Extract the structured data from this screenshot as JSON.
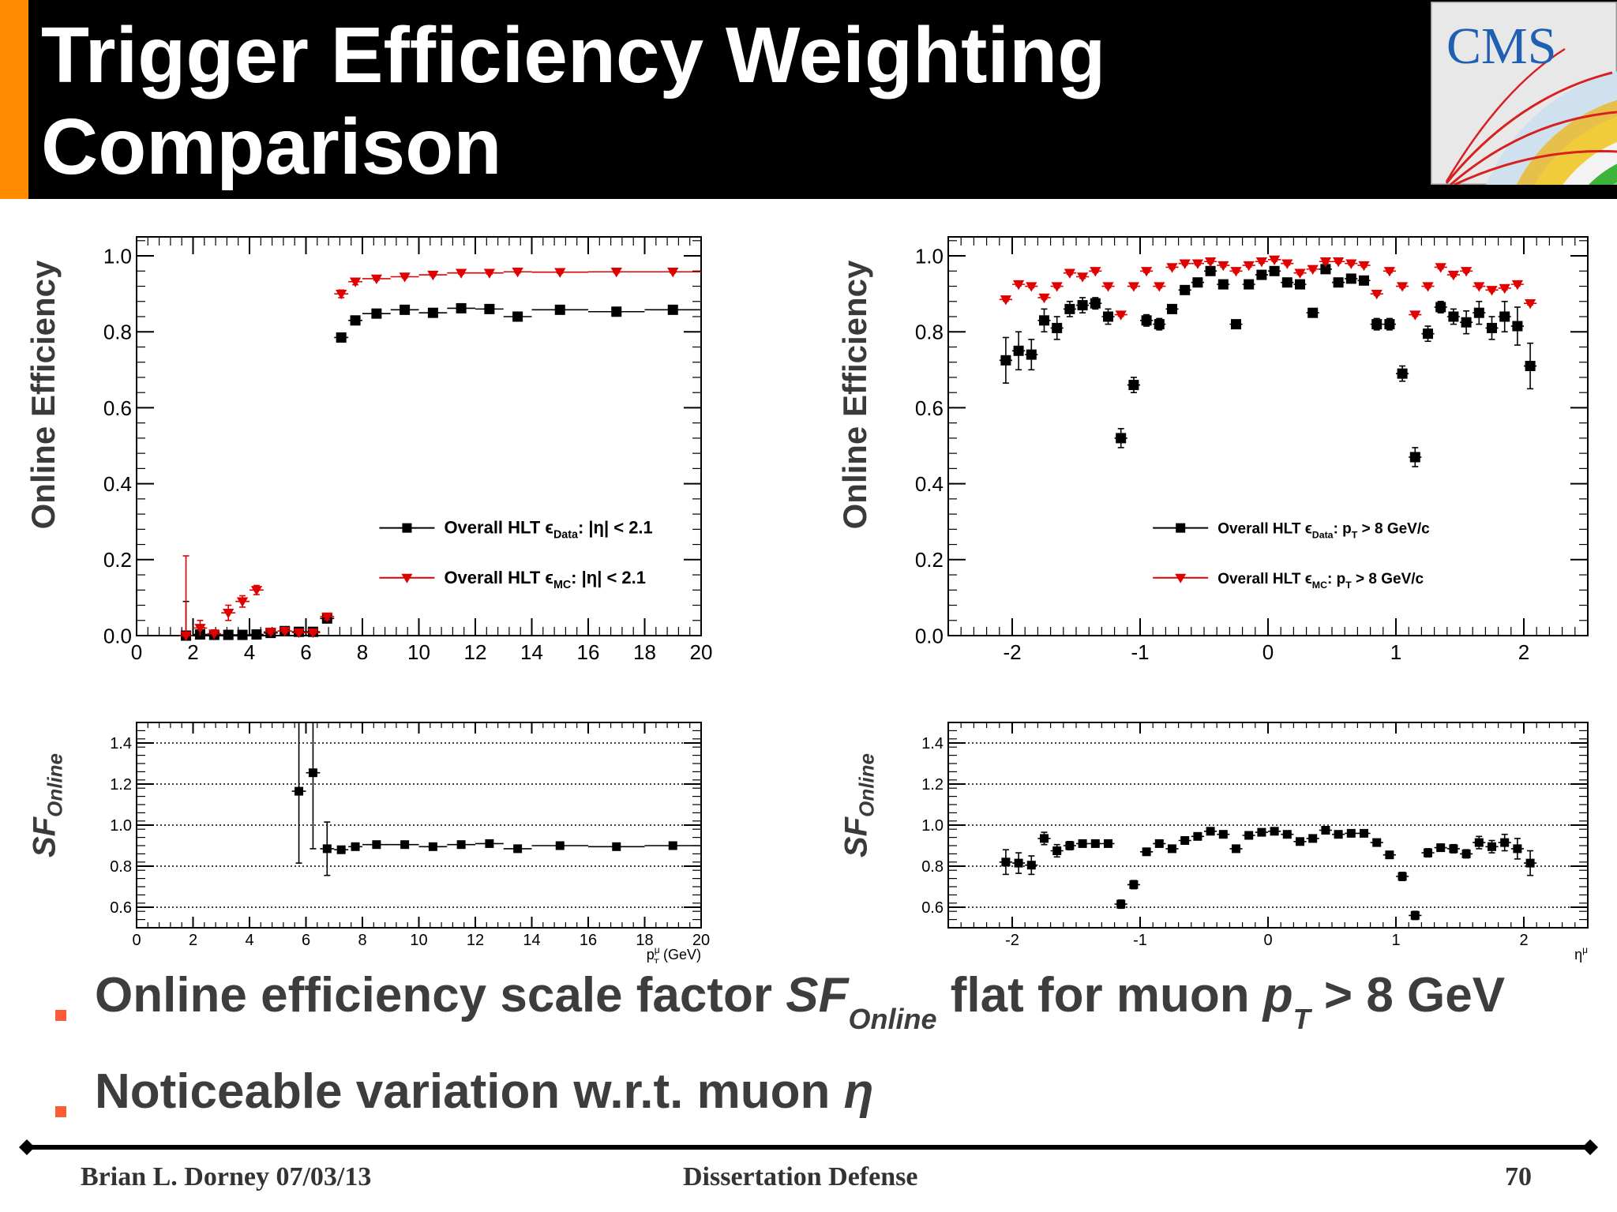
{
  "slide": {
    "title_line1": "Trigger Efficiency Weighting",
    "title_line2": "Comparison",
    "logo_text": "CMS",
    "accent_color": "#ff8c00",
    "bullet_color": "#ff5a36"
  },
  "bullets": [
    {
      "text_a": "Online efficiency scale factor ",
      "italic_a": "SF",
      "sub_a": "Online",
      "text_b": " flat for muon ",
      "italic_b": "p",
      "sub_b": "T",
      "text_c": " > 8 GeV"
    },
    {
      "text_a": "Noticeable variation w.r.t. muon ",
      "italic_a": "η"
    }
  ],
  "footer": {
    "left": "Brian L. Dorney 07/03/13",
    "center": "Dissertation Defense",
    "right": "70"
  },
  "chart_data": [
    {
      "id": "eff-pt",
      "type": "scatter",
      "ylabel": "Online Efficiency",
      "xlim": [
        0,
        20
      ],
      "ylim": [
        0,
        1.05
      ],
      "xticks": [
        "0",
        "2",
        "4",
        "6",
        "8",
        "10",
        "12",
        "14",
        "16",
        "18",
        "20"
      ],
      "yticks": [
        "0.0",
        "0.2",
        "0.4",
        "0.6",
        "0.8",
        "1.0"
      ],
      "legend": {
        "position": "center-right",
        "entries": [
          {
            "label": "Overall HLT ϵ",
            "sub": "Data",
            "suffix": ": |η| < 2.1",
            "marker": "square",
            "color": "#000000"
          },
          {
            "label": "Overall HLT ϵ",
            "sub": "MC",
            "suffix": ": |η| < 2.1",
            "marker": "triangle-down",
            "color": "#e00000"
          }
        ]
      },
      "series": [
        {
          "name": "Overall HLT ϵData: |η| < 2.1",
          "color": "#000000",
          "marker": "square",
          "x": [
            1.75,
            2.25,
            2.75,
            3.25,
            3.75,
            4.25,
            4.75,
            5.25,
            5.75,
            6.25,
            6.75,
            7.25,
            7.75,
            8.5,
            9.5,
            10.5,
            11.5,
            12.5,
            13.5,
            15,
            17,
            19
          ],
          "xerr": [
            0.25,
            0.25,
            0.25,
            0.25,
            0.25,
            0.25,
            0.25,
            0.25,
            0.25,
            0.25,
            0.25,
            0.25,
            0.25,
            0.5,
            0.5,
            0.5,
            0.5,
            0.5,
            0.5,
            1,
            1,
            1
          ],
          "y": [
            0.0,
            0.003,
            0.002,
            0.002,
            0.002,
            0.003,
            0.007,
            0.012,
            0.01,
            0.01,
            0.045,
            0.785,
            0.83,
            0.848,
            0.858,
            0.85,
            0.862,
            0.86,
            0.84,
            0.858,
            0.853,
            0.858
          ],
          "yerr": [
            0.09,
            0.01,
            0.005,
            0.005,
            0.005,
            0.005,
            0.005,
            0.006,
            0.006,
            0.006,
            0.01,
            0.01,
            0.01,
            0.006,
            0.005,
            0.005,
            0.005,
            0.005,
            0.005,
            0.004,
            0.004,
            0.004
          ]
        },
        {
          "name": "Overall HLT ϵMC: |η| < 2.1",
          "color": "#e00000",
          "marker": "triangle-down",
          "x": [
            1.75,
            2.25,
            2.75,
            3.25,
            3.75,
            4.25,
            4.75,
            5.25,
            5.75,
            6.25,
            6.75,
            7.25,
            7.75,
            8.5,
            9.5,
            10.5,
            11.5,
            12.5,
            13.5,
            15,
            17,
            19
          ],
          "xerr": [
            0.25,
            0.25,
            0.25,
            0.25,
            0.25,
            0.25,
            0.25,
            0.25,
            0.25,
            0.25,
            0.25,
            0.25,
            0.25,
            0.5,
            0.5,
            0.5,
            0.5,
            0.5,
            0.5,
            1,
            1,
            1
          ],
          "y": [
            0.0,
            0.02,
            0.005,
            0.06,
            0.09,
            0.12,
            0.01,
            0.012,
            0.008,
            0.008,
            0.05,
            0.9,
            0.932,
            0.94,
            0.945,
            0.95,
            0.955,
            0.955,
            0.958,
            0.957,
            0.958,
            0.958
          ],
          "yerr": [
            0.21,
            0.02,
            0.01,
            0.02,
            0.015,
            0.012,
            0.005,
            0.005,
            0.004,
            0.004,
            0.008,
            0.01,
            0.008,
            0.004,
            0.003,
            0.003,
            0.003,
            0.003,
            0.003,
            0.003,
            0.003,
            0.003
          ]
        }
      ]
    },
    {
      "id": "eff-eta",
      "type": "scatter",
      "ylabel": "Online Efficiency",
      "xlim": [
        -2.5,
        2.5
      ],
      "ylim": [
        0,
        1.05
      ],
      "xticks": [
        "-2",
        "-1",
        "0",
        "1",
        "2"
      ],
      "yticks": [
        "0.0",
        "0.2",
        "0.4",
        "0.6",
        "0.8",
        "1.0"
      ],
      "legend": {
        "position": "center-right",
        "entries": [
          {
            "label": "Overall HLT ϵ",
            "sub": "Data",
            "suffix": ": p",
            "sub2": "T",
            "suffix2": " > 8 GeV/c",
            "marker": "square",
            "color": "#000000"
          },
          {
            "label": "Overall HLT ϵ",
            "sub": "MC",
            "suffix": ": p",
            "sub2": "T",
            "suffix2": " > 8 GeV/c",
            "marker": "triangle-down",
            "color": "#e00000"
          }
        ]
      },
      "series": [
        {
          "name": "Overall HLT ϵData: pT > 8 GeV/c",
          "color": "#000000",
          "marker": "square",
          "x": [
            -2.05,
            -1.95,
            -1.85,
            -1.75,
            -1.65,
            -1.55,
            -1.45,
            -1.35,
            -1.25,
            -1.15,
            -1.05,
            -0.95,
            -0.85,
            -0.75,
            -0.65,
            -0.55,
            -0.45,
            -0.35,
            -0.25,
            -0.15,
            -0.05,
            0.05,
            0.15,
            0.25,
            0.35,
            0.45,
            0.55,
            0.65,
            0.75,
            0.85,
            0.95,
            1.05,
            1.15,
            1.25,
            1.35,
            1.45,
            1.55,
            1.65,
            1.75,
            1.85,
            1.95,
            2.05
          ],
          "y": [
            0.725,
            0.75,
            0.74,
            0.83,
            0.81,
            0.86,
            0.87,
            0.875,
            0.84,
            0.52,
            0.66,
            0.83,
            0.82,
            0.86,
            0.91,
            0.93,
            0.96,
            0.925,
            0.82,
            0.925,
            0.95,
            0.96,
            0.93,
            0.925,
            0.85,
            0.965,
            0.93,
            0.94,
            0.935,
            0.82,
            0.82,
            0.69,
            0.47,
            0.795,
            0.865,
            0.84,
            0.825,
            0.85,
            0.81,
            0.84,
            0.815,
            0.71
          ],
          "yerr": [
            0.06,
            0.05,
            0.04,
            0.03,
            0.03,
            0.02,
            0.02,
            0.015,
            0.02,
            0.025,
            0.02,
            0.015,
            0.015,
            0.01,
            0.01,
            0.01,
            0.008,
            0.008,
            0.01,
            0.008,
            0.008,
            0.008,
            0.008,
            0.008,
            0.01,
            0.008,
            0.01,
            0.01,
            0.01,
            0.015,
            0.015,
            0.02,
            0.025,
            0.02,
            0.015,
            0.02,
            0.03,
            0.03,
            0.03,
            0.04,
            0.05,
            0.06
          ],
          "xerr": 0.05
        },
        {
          "name": "Overall HLT ϵMC: pT > 8 GeV/c",
          "color": "#e00000",
          "marker": "triangle-down",
          "x": [
            -2.05,
            -1.95,
            -1.85,
            -1.75,
            -1.65,
            -1.55,
            -1.45,
            -1.35,
            -1.25,
            -1.15,
            -1.05,
            -0.95,
            -0.85,
            -0.75,
            -0.65,
            -0.55,
            -0.45,
            -0.35,
            -0.25,
            -0.15,
            -0.05,
            0.05,
            0.15,
            0.25,
            0.35,
            0.45,
            0.55,
            0.65,
            0.75,
            0.85,
            0.95,
            1.05,
            1.15,
            1.25,
            1.35,
            1.45,
            1.55,
            1.65,
            1.75,
            1.85,
            1.95,
            2.05
          ],
          "y": [
            0.885,
            0.925,
            0.92,
            0.89,
            0.92,
            0.955,
            0.945,
            0.96,
            0.92,
            0.845,
            0.92,
            0.96,
            0.92,
            0.97,
            0.98,
            0.98,
            0.985,
            0.975,
            0.96,
            0.975,
            0.985,
            0.99,
            0.98,
            0.955,
            0.965,
            0.985,
            0.985,
            0.98,
            0.975,
            0.9,
            0.96,
            0.92,
            0.845,
            0.92,
            0.97,
            0.95,
            0.96,
            0.92,
            0.91,
            0.915,
            0.925,
            0.875
          ],
          "yerr": 0.004,
          "xerr": 0.05
        }
      ]
    },
    {
      "id": "sf-pt",
      "type": "scatter",
      "ylabel": "SF",
      "ylabel_sub": "Online",
      "xlabel": "p",
      "xlabel_sub": "T",
      "xlabel_sup": "μ",
      "xlabel_unit": " (GeV)",
      "xlim": [
        0,
        20
      ],
      "ylim": [
        0.5,
        1.5
      ],
      "xticks": [
        "0",
        "2",
        "4",
        "6",
        "8",
        "10",
        "12",
        "14",
        "16",
        "18",
        "20"
      ],
      "yticks": [
        "0.6",
        "0.8",
        "1.0",
        "1.2",
        "1.4"
      ],
      "gridlines": [
        0.6,
        0.8,
        1.0,
        1.2,
        1.4
      ],
      "series": [
        {
          "name": "SF",
          "color": "#000000",
          "marker": "square",
          "x": [
            5.75,
            6.25,
            6.75,
            7.25,
            7.75,
            8.5,
            9.5,
            10.5,
            11.5,
            12.5,
            13.5,
            15,
            17,
            19
          ],
          "xerr": [
            0.25,
            0.25,
            0.25,
            0.25,
            0.25,
            0.5,
            0.5,
            0.5,
            0.5,
            0.5,
            0.5,
            1,
            1,
            1
          ],
          "y": [
            1.165,
            1.255,
            0.885,
            0.88,
            0.895,
            0.905,
            0.905,
            0.895,
            0.905,
            0.91,
            0.885,
            0.9,
            0.895,
            0.9
          ],
          "yerr": [
            0.35,
            0.37,
            0.13,
            0.01,
            0.01,
            0.008,
            0.008,
            0.008,
            0.008,
            0.008,
            0.008,
            0.006,
            0.006,
            0.006
          ]
        }
      ]
    },
    {
      "id": "sf-eta",
      "type": "scatter",
      "ylabel": "SF",
      "ylabel_sub": "Online",
      "xlabel": "η",
      "xlabel_sup": "μ",
      "xlim": [
        -2.5,
        2.5
      ],
      "ylim": [
        0.5,
        1.5
      ],
      "xticks": [
        "-2",
        "-1",
        "0",
        "1",
        "2"
      ],
      "yticks": [
        "0.6",
        "0.8",
        "1.0",
        "1.2",
        "1.4"
      ],
      "gridlines": [
        0.6,
        0.8,
        1.0,
        1.2,
        1.4
      ],
      "series": [
        {
          "name": "SF",
          "color": "#000000",
          "marker": "square",
          "x": [
            -2.05,
            -1.95,
            -1.85,
            -1.75,
            -1.65,
            -1.55,
            -1.45,
            -1.35,
            -1.25,
            -1.15,
            -1.05,
            -0.95,
            -0.85,
            -0.75,
            -0.65,
            -0.55,
            -0.45,
            -0.35,
            -0.25,
            -0.15,
            -0.05,
            0.05,
            0.15,
            0.25,
            0.35,
            0.45,
            0.55,
            0.65,
            0.75,
            0.85,
            0.95,
            1.05,
            1.15,
            1.25,
            1.35,
            1.45,
            1.55,
            1.65,
            1.75,
            1.85,
            1.95,
            2.05
          ],
          "y": [
            0.82,
            0.815,
            0.805,
            0.935,
            0.875,
            0.9,
            0.91,
            0.91,
            0.91,
            0.615,
            0.71,
            0.87,
            0.91,
            0.885,
            0.925,
            0.945,
            0.97,
            0.955,
            0.885,
            0.95,
            0.965,
            0.97,
            0.955,
            0.92,
            0.935,
            0.975,
            0.955,
            0.96,
            0.96,
            0.915,
            0.855,
            0.75,
            0.56,
            0.865,
            0.89,
            0.885,
            0.86,
            0.915,
            0.895,
            0.915,
            0.885,
            0.815
          ],
          "yerr": [
            0.06,
            0.05,
            0.045,
            0.03,
            0.03,
            0.02,
            0.015,
            0.015,
            0.015,
            0.02,
            0.02,
            0.015,
            0.015,
            0.01,
            0.01,
            0.01,
            0.01,
            0.01,
            0.01,
            0.01,
            0.01,
            0.01,
            0.01,
            0.01,
            0.01,
            0.01,
            0.01,
            0.01,
            0.01,
            0.015,
            0.015,
            0.02,
            0.02,
            0.02,
            0.015,
            0.02,
            0.02,
            0.03,
            0.03,
            0.04,
            0.05,
            0.06
          ],
          "xerr": 0.05
        }
      ]
    }
  ]
}
